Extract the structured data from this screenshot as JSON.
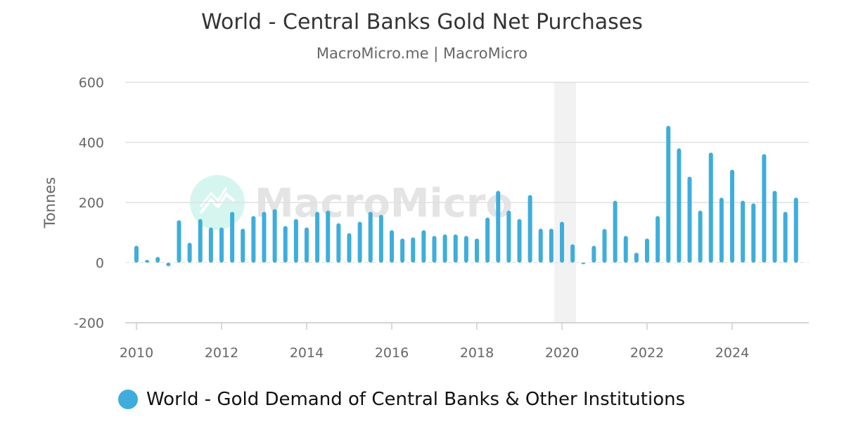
{
  "chart_data": {
    "type": "bar",
    "title": "World - Central Banks Gold Net Purchases",
    "subtitle": "MacroMicro.me | MacroMicro",
    "ylabel": "Tonnes",
    "xlabel": "",
    "ylim": [
      -200,
      600
    ],
    "yticks": [
      600,
      400,
      200,
      0,
      -200
    ],
    "xticks": [
      "2010",
      "2012",
      "2014",
      "2016",
      "2018",
      "2020",
      "2022",
      "2024"
    ],
    "grid": true,
    "legend_position": "bottom",
    "watermark": "MacroMicro",
    "shaded_period": {
      "start": "2020Q1",
      "end": "2020Q2"
    },
    "series": [
      {
        "name": "World - Gold Demand of Central Banks & Other Institutions",
        "color": "#3daedb",
        "start_quarter": "2010Q1",
        "values": [
          56,
          9,
          19,
          -12,
          141,
          66,
          145,
          117,
          117,
          169,
          113,
          155,
          169,
          178,
          122,
          145,
          117,
          169,
          173,
          131,
          98,
          136,
          169,
          159,
          108,
          80,
          84,
          108,
          89,
          94,
          94,
          89,
          80,
          150,
          239,
          173,
          145,
          225,
          113,
          113,
          136,
          61,
          -5,
          56,
          112,
          206,
          89,
          33,
          80,
          155,
          455,
          380,
          286,
          173,
          366,
          216,
          309,
          206,
          197,
          361,
          239,
          169,
          216
        ]
      }
    ]
  }
}
